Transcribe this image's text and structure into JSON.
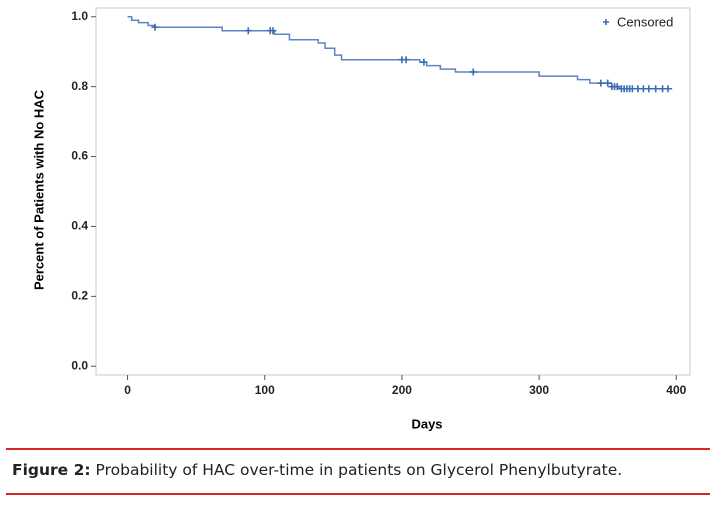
{
  "chart_data": {
    "type": "step",
    "xlabel": "Days",
    "ylabel": "Percent of Patients with No HAC",
    "xlim": [
      -23,
      410
    ],
    "ylim": [
      -0.025,
      1.025
    ],
    "xticks": [
      0,
      100,
      200,
      300,
      400
    ],
    "yticks": [
      {
        "value": 0,
        "label": "0.0"
      },
      0.2,
      0.4,
      0.6,
      0.8,
      {
        "value": 1,
        "label": "1.0"
      }
    ],
    "legend": "upper right",
    "series": [
      {
        "color": "#5b84c4",
        "x": [
          0,
          3,
          8,
          15,
          20,
          69,
          107,
          118,
          139,
          144,
          151,
          156,
          213,
          218,
          228,
          239,
          300,
          328,
          337,
          353,
          358,
          397
        ],
        "values": [
          1.0,
          0.99,
          0.983,
          0.975,
          0.97,
          0.96,
          0.95,
          0.934,
          0.925,
          0.91,
          0.89,
          0.877,
          0.87,
          0.86,
          0.85,
          0.842,
          0.83,
          0.82,
          0.81,
          0.8,
          0.794,
          0.794
        ]
      },
      {
        "name": "Censored",
        "color": "#3b6bb5",
        "x": [
          20,
          88,
          104,
          106,
          200,
          203,
          216,
          252,
          345,
          350,
          353,
          355,
          357,
          360,
          362,
          364,
          366,
          368,
          372,
          376,
          380,
          385,
          390,
          394
        ],
        "values": [
          0.97,
          0.96,
          0.96,
          0.96,
          0.877,
          0.877,
          0.87,
          0.842,
          0.81,
          0.81,
          0.8,
          0.8,
          0.8,
          0.794,
          0.794,
          0.794,
          0.794,
          0.794,
          0.794,
          0.794,
          0.794,
          0.794,
          0.794,
          0.794
        ]
      }
    ]
  },
  "caption": {
    "label": "Figure 2:",
    "text": "Probability of HAC over-time in patients on Glycerol Phenylbutyrate."
  }
}
